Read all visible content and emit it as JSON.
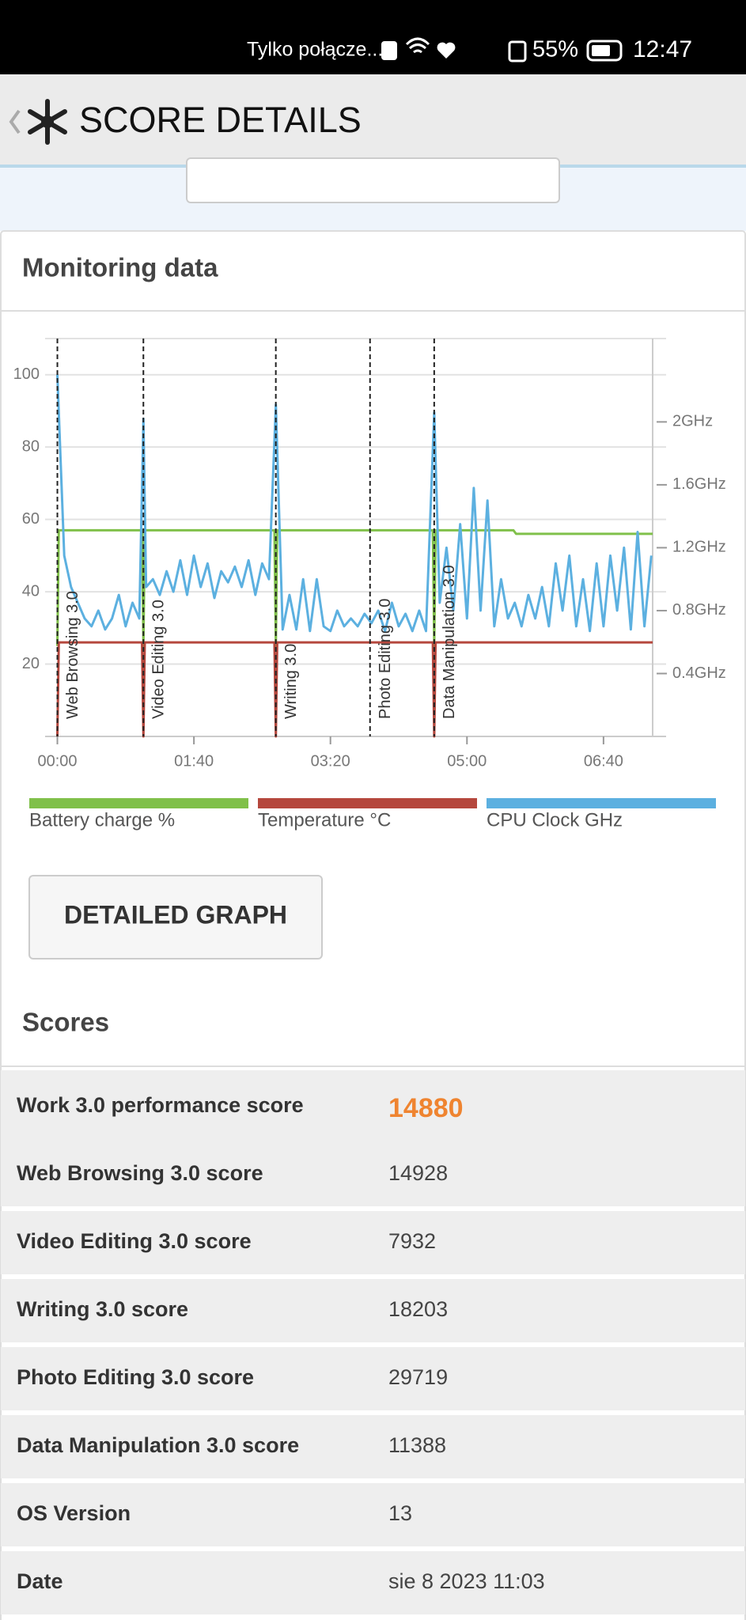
{
  "status_bar": {
    "carrier": "Tylko połącze...",
    "battery": "55%",
    "time": "12:47"
  },
  "header": {
    "title": "SCORE DETAILS"
  },
  "monitoring": {
    "title": "Monitoring data",
    "button": "DETAILED GRAPH"
  },
  "chart_data": {
    "type": "line",
    "xlim": [
      -9,
      436
    ],
    "xticks": [
      {
        "value": 0,
        "label": "00:00"
      },
      {
        "value": 100,
        "label": "01:40"
      },
      {
        "value": 200,
        "label": "03:20"
      },
      {
        "value": 300,
        "label": "05:00"
      },
      {
        "value": 400,
        "label": "06:40"
      }
    ],
    "ylim": [
      0,
      110
    ],
    "yticks": [
      20,
      40,
      60,
      80,
      100
    ],
    "y2lim": [
      0,
      2.53
    ],
    "y2ticks": [
      {
        "value": 0.4,
        "label": "0.4GHz"
      },
      {
        "value": 0.8,
        "label": "0.8GHz"
      },
      {
        "value": 1.2,
        "label": "1.2GHz"
      },
      {
        "value": 1.6,
        "label": "1.6GHz"
      },
      {
        "value": 2,
        "label": "2GHz"
      }
    ],
    "grid": true,
    "annotations": [
      {
        "x": 0,
        "text": "Web Browsing 3.0"
      },
      {
        "x": 63,
        "text": "Video Editing 3.0"
      },
      {
        "x": 160,
        "text": "Writing 3.0"
      },
      {
        "x": 229,
        "text": "Photo Editing 3.0"
      },
      {
        "x": 276,
        "text": "Data Manipulation 3.0"
      }
    ],
    "series": [
      {
        "name": "Battery charge %",
        "color": "#80c04a",
        "x": [
          0,
          1,
          62,
          63,
          64,
          159,
          160,
          161,
          275,
          276,
          277,
          334,
          336,
          436
        ],
        "values": [
          25,
          57,
          57,
          25,
          57,
          57,
          25,
          57,
          57,
          25,
          57,
          57,
          56,
          56
        ]
      },
      {
        "name": "Temperature °C",
        "color": "#b5473d",
        "x": [
          0,
          1,
          62,
          63,
          64,
          159,
          160,
          161,
          275,
          276,
          277,
          436
        ],
        "values": [
          0,
          26,
          26,
          0,
          26,
          26,
          0,
          26,
          26,
          0,
          26,
          26
        ]
      },
      {
        "name": "CPU Clock GHz",
        "color": "#5cb0e0",
        "axis": "y2",
        "x": [
          0,
          5,
          10,
          15,
          20,
          25,
          30,
          35,
          40,
          45,
          50,
          55,
          60,
          63,
          65,
          70,
          75,
          80,
          85,
          90,
          95,
          100,
          105,
          110,
          115,
          120,
          125,
          130,
          135,
          140,
          145,
          150,
          155,
          160,
          165,
          170,
          175,
          180,
          185,
          190,
          195,
          200,
          205,
          210,
          215,
          220,
          225,
          230,
          235,
          240,
          245,
          250,
          255,
          260,
          265,
          270,
          276,
          280,
          285,
          290,
          295,
          300,
          305,
          310,
          315,
          320,
          325,
          330,
          335,
          340,
          345,
          350,
          355,
          360,
          365,
          370,
          375,
          380,
          385,
          390,
          395,
          400,
          405,
          410,
          415,
          420,
          425,
          430,
          435
        ],
        "values": [
          2.3,
          1.15,
          0.95,
          0.85,
          0.75,
          0.7,
          0.8,
          0.68,
          0.75,
          0.9,
          0.7,
          0.85,
          0.75,
          2.02,
          0.95,
          1.0,
          0.9,
          1.05,
          0.92,
          1.12,
          0.9,
          1.15,
          0.95,
          1.1,
          0.88,
          1.05,
          0.98,
          1.08,
          0.95,
          1.12,
          0.9,
          1.1,
          1.0,
          2.11,
          0.68,
          0.9,
          0.68,
          1.0,
          0.67,
          1.0,
          0.7,
          0.67,
          0.8,
          0.7,
          0.75,
          0.7,
          0.78,
          0.72,
          0.8,
          0.67,
          0.85,
          0.7,
          0.78,
          0.67,
          0.8,
          0.67,
          2.06,
          0.85,
          1.2,
          0.8,
          1.35,
          0.75,
          1.58,
          0.8,
          1.5,
          0.7,
          1.0,
          0.75,
          0.85,
          0.7,
          0.9,
          0.75,
          0.95,
          0.7,
          1.1,
          0.8,
          1.15,
          0.7,
          1.0,
          0.67,
          1.1,
          0.7,
          1.15,
          0.8,
          1.2,
          0.68,
          1.3,
          0.7,
          1.15
        ]
      }
    ]
  },
  "scores": {
    "title": "Scores",
    "rows": [
      {
        "label": "Work 3.0 performance score",
        "value": 14880
      },
      {
        "label": "Web Browsing 3.0 score",
        "value": 14928
      },
      {
        "label": "Video Editing 3.0 score",
        "value": 7932
      },
      {
        "label": "Writing 3.0 score",
        "value": 18203
      },
      {
        "label": "Photo Editing 3.0 score",
        "value": 29719
      },
      {
        "label": "Data Manipulation 3.0 score",
        "value": 11388
      },
      {
        "label": "OS Version",
        "value": 13
      },
      {
        "label": "Date",
        "value": "sie 8 2023 11:03"
      }
    ]
  }
}
